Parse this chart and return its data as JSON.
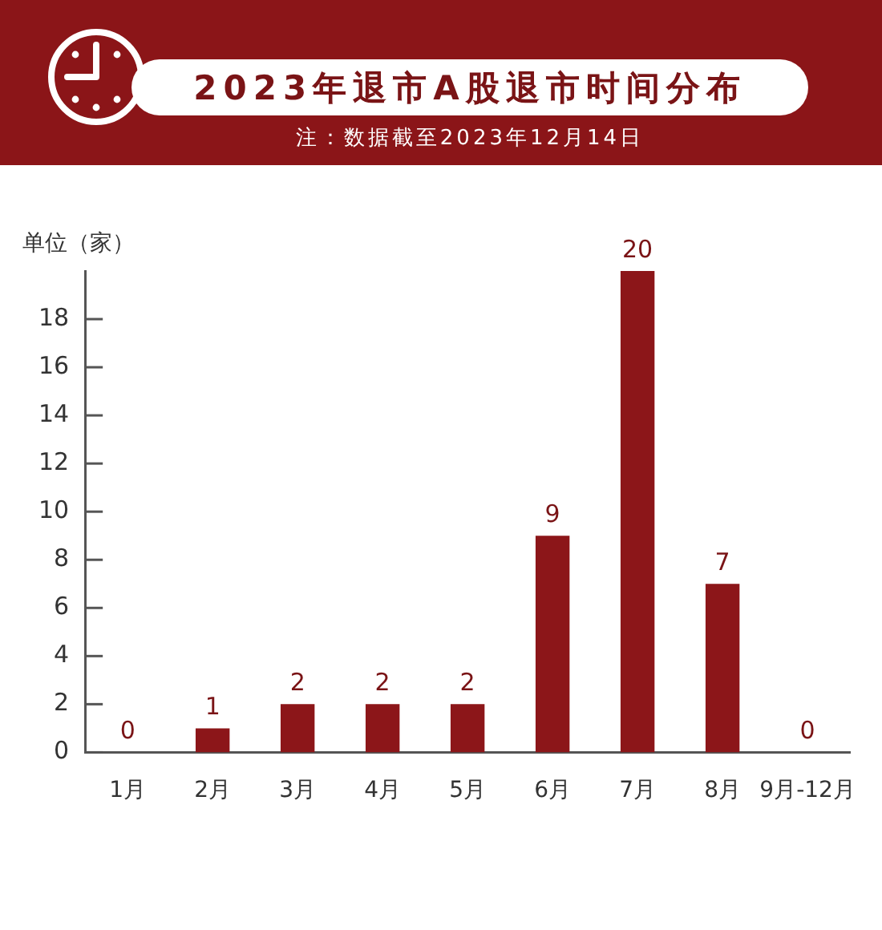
{
  "chart_data": {
    "type": "bar",
    "title": "2023年退市A股退市时间分布",
    "subtitle": "注：数据截至2023年12月14日",
    "ylabel": "单位（家）",
    "categories": [
      "1月",
      "2月",
      "3月",
      "4月",
      "5月",
      "6月",
      "7月",
      "8月",
      "9月-12月"
    ],
    "values": [
      0,
      1,
      2,
      2,
      2,
      9,
      20,
      7,
      0
    ],
    "color": "#8c1619",
    "ylim": [
      0,
      20
    ],
    "yticks": [
      0,
      2,
      4,
      6,
      8,
      10,
      12,
      14,
      16,
      18
    ],
    "grid": false,
    "legend": false,
    "data_labels": true
  }
}
